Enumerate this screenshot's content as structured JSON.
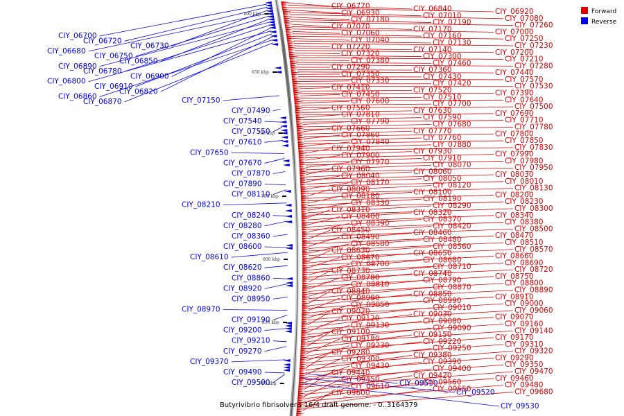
{
  "caption": "Butyrivibrio fibrisolvens 16/4 draft genome. - 0..3164379",
  "legend": [
    {
      "label": "Forward",
      "color": "#e00000"
    },
    {
      "label": "Reverse",
      "color": "#0000ee"
    }
  ],
  "scale_ticks": [
    "600 kbp",
    "650 kbp",
    "700 kbp",
    "750 kbp",
    "800 kbp",
    "850 kbp",
    "900 kbp"
  ],
  "forward_labels": [
    "CIY_06770",
    "CIY_06840",
    "CIY_06920",
    "CIY_06930",
    "CIY_07010",
    "CIY_07080",
    "CIY_07180",
    "CIY_07190",
    "CIY_07260",
    "CIY_07070",
    "CIY_07170",
    "CIY_07000",
    "CIY_07060",
    "CIY_07160",
    "CIY_07250",
    "CIY_07040",
    "CIY_07130",
    "CIY_07230",
    "CIY_07220",
    "CIY_07140",
    "CIY_07200",
    "CIY_07320",
    "CIY_07300",
    "CIY_07210",
    "CIY_07380",
    "CIY_07460",
    "CIY_07280",
    "CIY_07290",
    "CIY_07360",
    "CIY_07440",
    "CIY_07350",
    "CIY_07430",
    "CIY_07570",
    "CIY_07330",
    "CIY_07420",
    "CIY_07530",
    "CIY_07410",
    "CIY_07520",
    "CIY_07390",
    "CIY_07450",
    "CIY_07510",
    "CIY_07640",
    "CIY_07600",
    "CIY_07700",
    "CIY_07500",
    "CIY_07560",
    "CIY_07630",
    "CIY_07690",
    "CIY_07810",
    "CIY_07590",
    "CIY_07710",
    "CIY_07790",
    "CIY_07680",
    "CIY_07780",
    "CIY_07660",
    "CIY_07770",
    "CIY_07800",
    "CIY_07860",
    "CIY_07760",
    "CIY_07850",
    "CIY_07840",
    "CIY_07880",
    "CIY_07830",
    "CIY_07940",
    "CIY_07930",
    "CIY_07990",
    "CIY_07900",
    "CIY_07910",
    "CIY_07980",
    "CIY_07970",
    "CIY_08070",
    "CIY_07950",
    "CIY_07960",
    "CIY_08060",
    "CIY_08030",
    "CIY_08040",
    "CIY_08050",
    "CIY_08010",
    "CIY_08170",
    "CIY_08120",
    "CIY_08130",
    "CIY_08090",
    "CIY_08100",
    "CIY_08200",
    "CIY_08180",
    "CIY_08190",
    "CIY_08230",
    "CIY_08330",
    "CIY_08290",
    "CIY_08300",
    "CIY_08310",
    "CIY_08320",
    "CIY_08340",
    "CIY_08400",
    "CIY_08370",
    "CIY_08380",
    "CIY_08390",
    "CIY_08420",
    "CIY_08500",
    "CIY_08450",
    "CIY_08460",
    "CIY_08470",
    "CIY_08490",
    "CIY_08480",
    "CIY_08510",
    "CIY_08580",
    "CIY_08560",
    "CIY_08570",
    "CIY_08630",
    "CIY_08650",
    "CIY_08660",
    "CIY_08670",
    "CIY_08680",
    "CIY_08690",
    "CIY_08700",
    "CIY_08710",
    "CIY_08720",
    "CIY_08730",
    "CIY_08740",
    "CIY_08750",
    "CIY_08780",
    "CIY_08790",
    "CIY_08800",
    "CIY_08810",
    "CIY_08870",
    "CIY_08890",
    "CIY_08840",
    "CIY_08850",
    "CIY_08910",
    "CIY_08980",
    "CIY_08990",
    "CIY_09000",
    "CIY_09050",
    "CIY_09010",
    "CIY_09060",
    "CIY_09020",
    "CIY_09030",
    "CIY_09070",
    "CIY_09120",
    "CIY_09080",
    "CIY_09160",
    "CIY_09130",
    "CIY_09090",
    "CIY_09140",
    "CIY_09100",
    "CIY_09150",
    "CIY_09170",
    "CIY_09180",
    "CIY_09220",
    "CIY_09310",
    "CIY_09230",
    "CIY_09250",
    "CIY_09320",
    "CIY_09280",
    "CIY_09380",
    "CIY_09290",
    "CIY_09300",
    "CIY_09390",
    "CIY_09350",
    "CIY_09430",
    "CIY_09400",
    "CIY_09470",
    "CIY_09440",
    "CIY_09420",
    "CIY_09460",
    "CIY_09450",
    "CIY_09560",
    "CIY_09480",
    "CIY_09610",
    "CIY_09550",
    "CIY_09680",
    "CIY_09600"
  ],
  "reverse_right_labels": [
    "CIY_09510",
    "CIY_09520",
    "CIY_09530"
  ],
  "reverse_left_labels": [
    "CIY_06700",
    "CIY_06720",
    "CIY_06730",
    "CIY_06680",
    "CIY_06750",
    "CIY_06850",
    "CIY_06890",
    "CIY_06780",
    "CIY_06900",
    "CIY_06800",
    "CIY_06910",
    "CIY_06820",
    "CIY_06860",
    "CIY_06870",
    "CIY_07150",
    "CIY_07490",
    "CIY_07540",
    "CIY_07550",
    "CIY_07610",
    "CIY_07650",
    "CIY_07670",
    "CIY_07870",
    "CIY_07890",
    "CIY_08110",
    "CIY_08210",
    "CIY_08240",
    "CIY_08280",
    "CIY_08360",
    "CIY_08600",
    "CIY_08610",
    "CIY_08620",
    "CIY_08860",
    "CIY_08920",
    "CIY_08950",
    "CIY_08970",
    "CIY_09190",
    "CIY_09200",
    "CIY_09210",
    "CIY_09270",
    "CIY_09370",
    "CIY_09490",
    "CIY_09500"
  ]
}
